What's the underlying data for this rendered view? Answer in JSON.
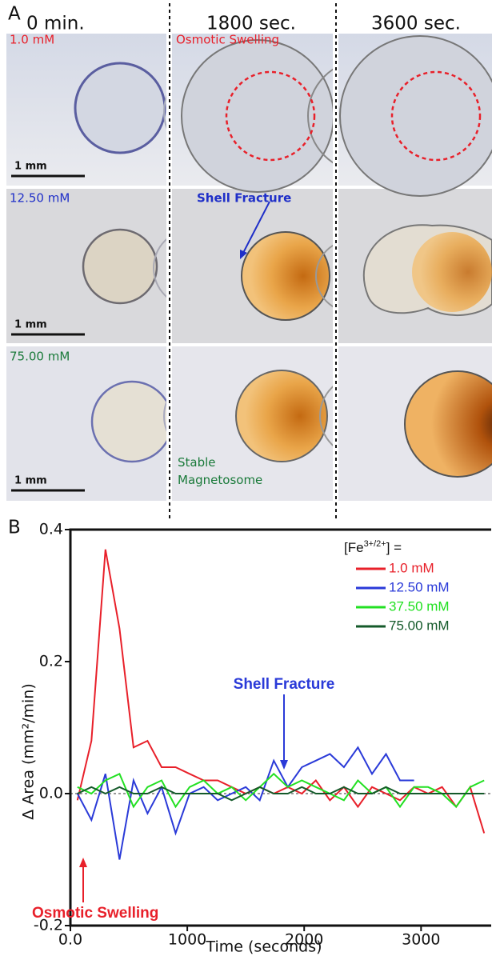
{
  "panel_labels": [
    "A",
    "B"
  ],
  "panel_a": {
    "columns": [
      "0 min.",
      "1800 sec.",
      "3600 sec."
    ],
    "rows": [
      "1.0 mM",
      "12.50 mM",
      "75.00 mM"
    ],
    "row_colors": [
      "#e8202a",
      "#1f2fc8",
      "#1a7a3a"
    ],
    "scale_bars": [
      "1 mm",
      "1 mm",
      "1 mm"
    ],
    "annotations": {
      "osmotic_swelling": "Osmotic Swelling",
      "shell_fracture": "Shell Fracture",
      "stable": [
        "Stable",
        "Magnetosome"
      ]
    }
  },
  "chart_data": {
    "type": "line",
    "y_label": "Δ Area (mm²/min)",
    "x_label": "Time (seconds)",
    "legend_title": {
      "base": "[Fe",
      "sup": "3+/2+",
      "end": "] ="
    },
    "legend_position": "upper right",
    "annotations": {
      "shell_fracture": "Shell Fracture",
      "osmotic_swelling": "Osmotic Swelling"
    },
    "x": [
      60,
      180,
      300,
      420,
      540,
      660,
      780,
      900,
      1020,
      1140,
      1260,
      1380,
      1500,
      1620,
      1740,
      1860,
      1980,
      2100,
      2220,
      2340,
      2460,
      2580,
      2700,
      2820,
      2940,
      3060,
      3180,
      3300,
      3420,
      3540
    ],
    "series": [
      {
        "name": "1.0 mM",
        "color": "#e8202a",
        "values": [
          -0.01,
          0.08,
          0.37,
          0.25,
          0.07,
          0.08,
          0.04,
          0.04,
          0.03,
          0.02,
          0.02,
          0.01,
          0.0,
          0.01,
          0.0,
          0.01,
          0.0,
          0.02,
          -0.01,
          0.01,
          -0.02,
          0.01,
          0.0,
          -0.01,
          0.01,
          0.0,
          0.01,
          -0.02,
          0.01,
          -0.06
        ]
      },
      {
        "name": "12.50 mM",
        "color": "#2a3ad8",
        "values": [
          0.0,
          -0.04,
          0.03,
          -0.1,
          0.02,
          -0.03,
          0.01,
          -0.06,
          0.0,
          0.01,
          -0.01,
          0.0,
          0.01,
          -0.01,
          0.05,
          0.01,
          0.04,
          0.05,
          0.06,
          0.04,
          0.07,
          0.03,
          0.06,
          0.02,
          0.02,
          null,
          null,
          null,
          null,
          null
        ]
      },
      {
        "name": "37.50 mM",
        "color": "#22e022",
        "values": [
          0.01,
          0.0,
          0.02,
          0.03,
          -0.02,
          0.01,
          0.02,
          -0.02,
          0.01,
          0.02,
          0.0,
          0.01,
          -0.01,
          0.01,
          0.03,
          0.01,
          0.02,
          0.01,
          0.0,
          -0.01,
          0.02,
          0.0,
          0.01,
          -0.02,
          0.01,
          0.01,
          0.0,
          -0.02,
          0.01,
          0.02
        ]
      },
      {
        "name": "75.00 mM",
        "color": "#145a2a",
        "values": [
          0.0,
          0.01,
          0.0,
          0.01,
          0.0,
          0.0,
          0.01,
          0.0,
          0.0,
          0.0,
          0.0,
          -0.01,
          0.0,
          0.01,
          0.0,
          0.0,
          0.01,
          0.0,
          0.0,
          0.01,
          0.0,
          0.0,
          0.01,
          0.0,
          0.0,
          0.0,
          0.0,
          0.0,
          0.0,
          0.0
        ]
      }
    ],
    "xlim": [
      0,
      3600
    ],
    "xticks": [
      {
        "value": 0,
        "label": "0.0"
      },
      1000,
      2000,
      3000
    ],
    "ylim": [
      -0.2,
      0.4
    ],
    "yticks": [
      -0.2,
      {
        "value": 0,
        "label": "0.0"
      },
      0.2,
      0.4
    ],
    "zero_line": true
  }
}
